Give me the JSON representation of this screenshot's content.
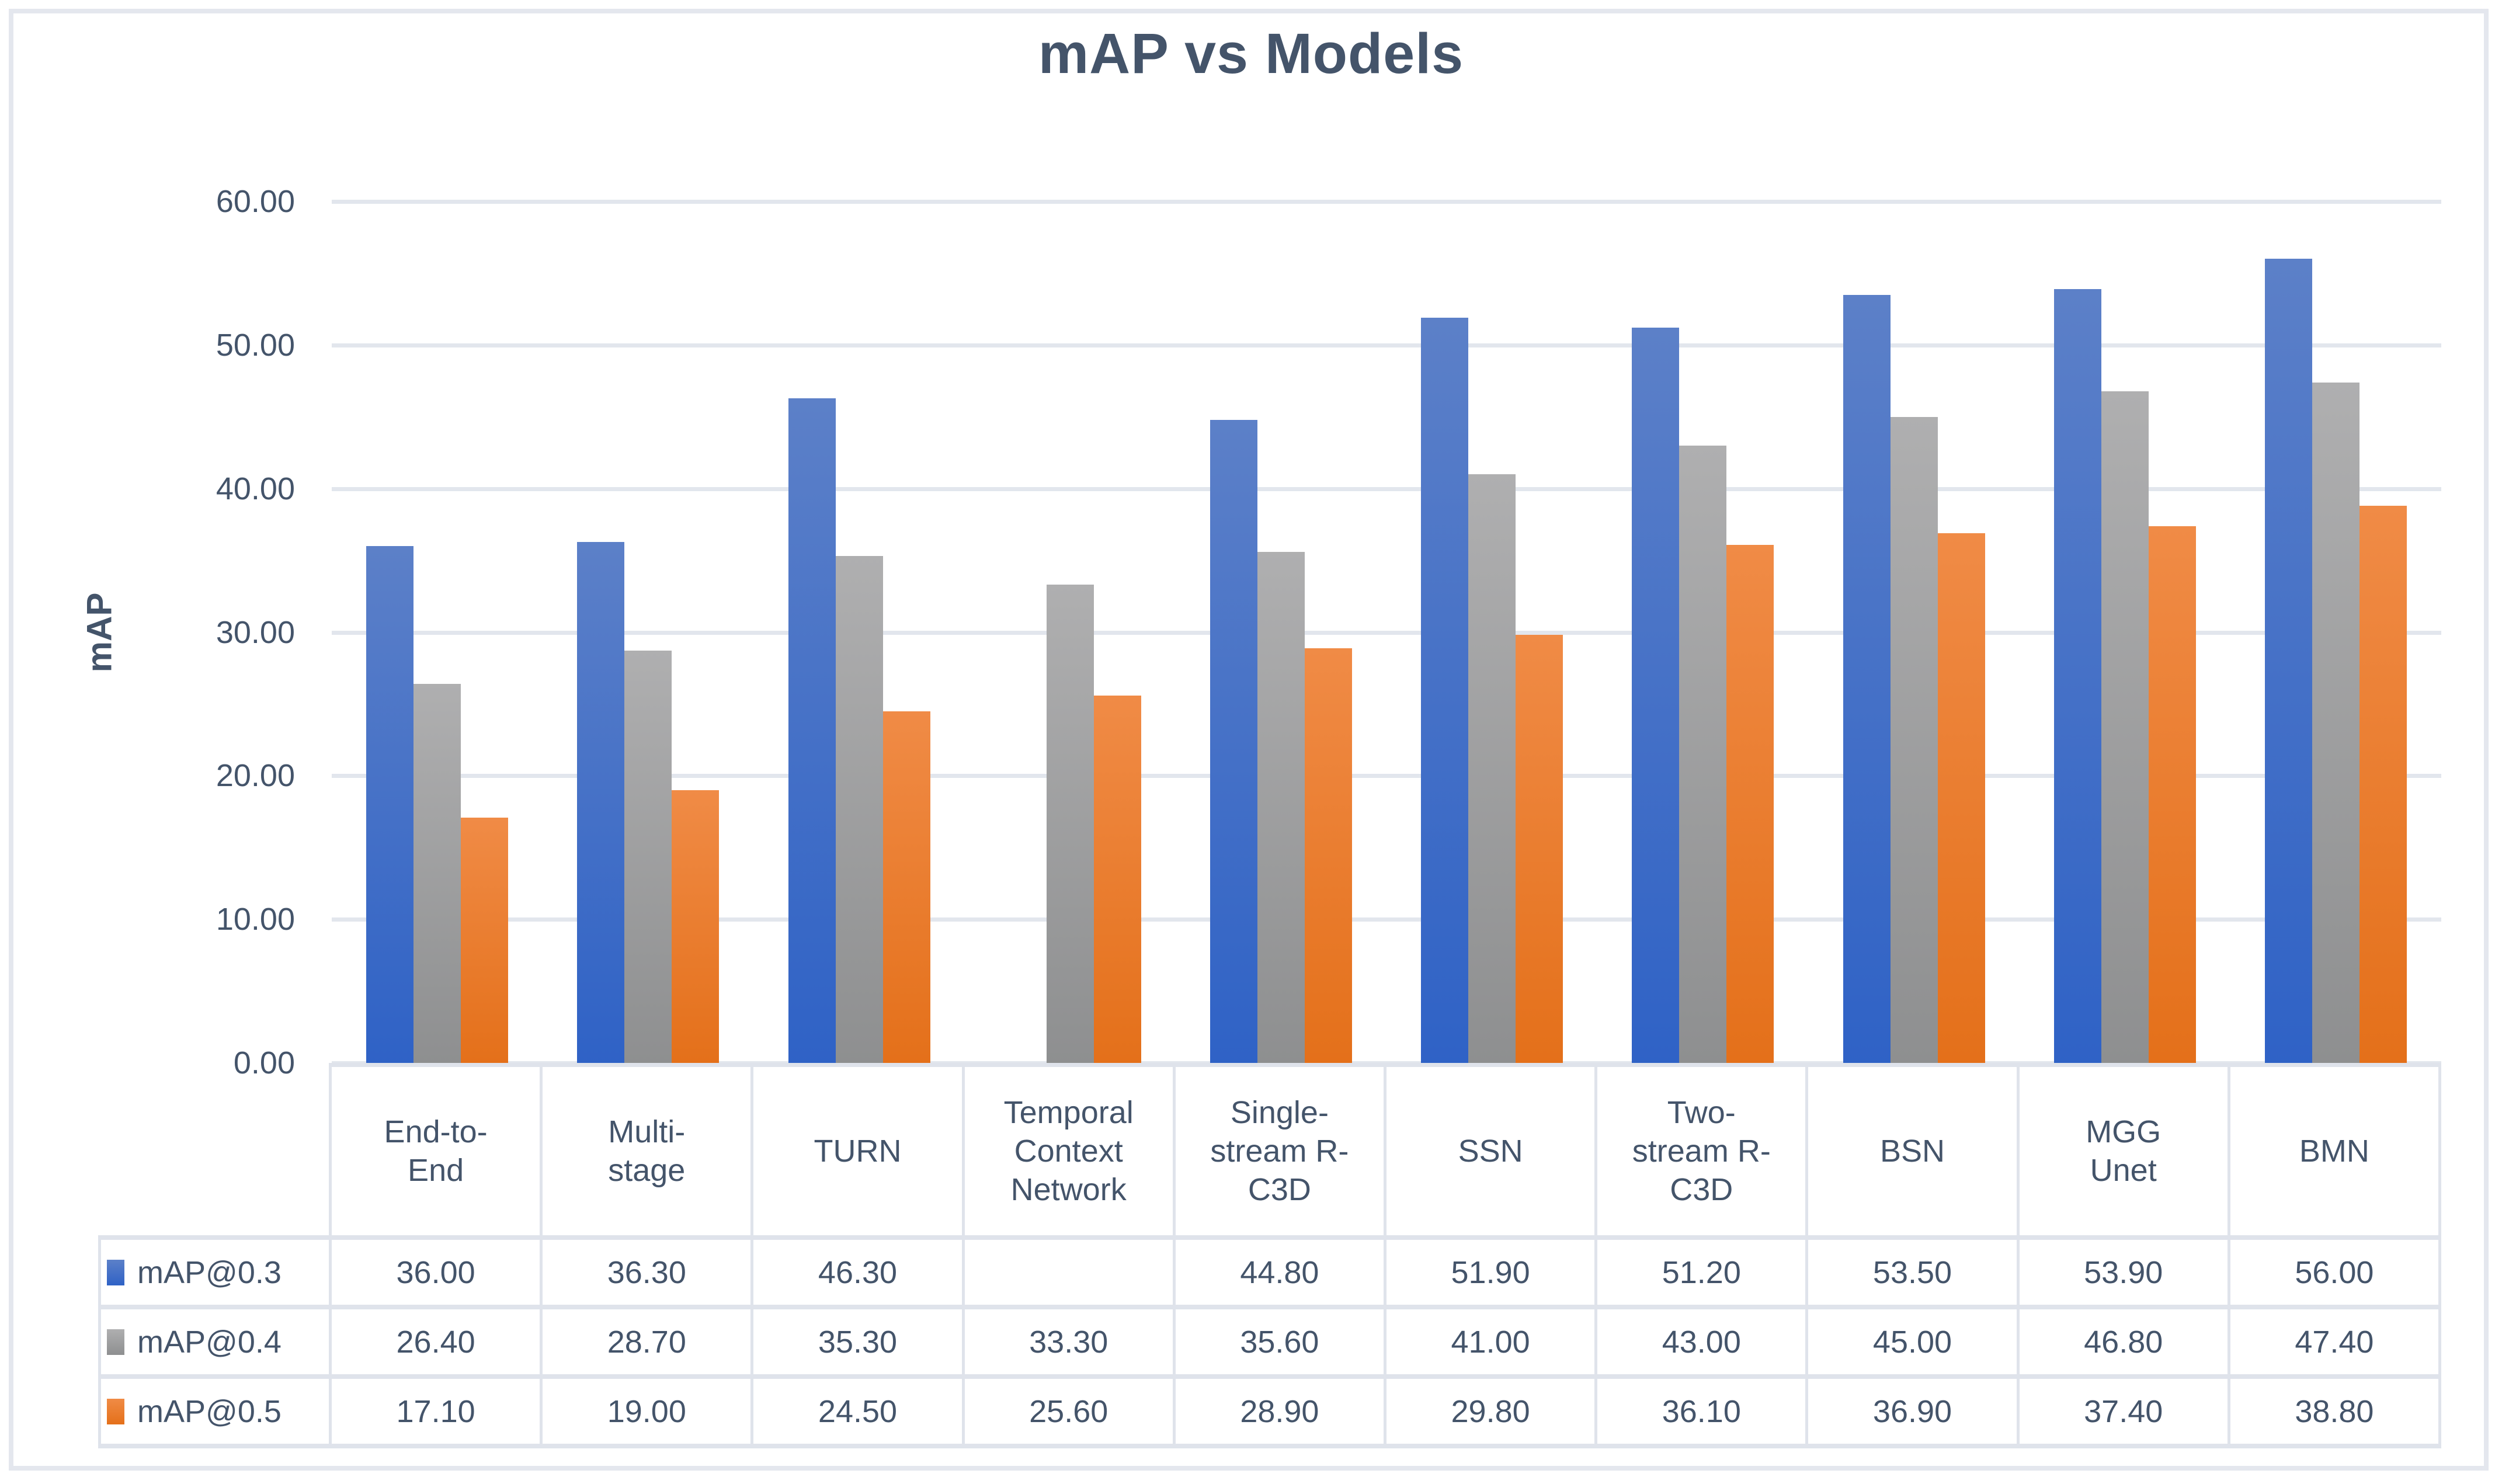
{
  "title": "mAP vs Models",
  "colors": {
    "background": "#FFFFFF",
    "text": "#44546A",
    "frame_border": "#E4E7EE",
    "gridline": "#E2E6ED",
    "table_border": "#DFE3EB"
  },
  "chart_data": {
    "type": "bar",
    "title": "mAP vs Models",
    "xlabel": "",
    "ylabel": "mAP",
    "ylim": [
      0,
      60
    ],
    "ytick_step": 10,
    "y_tick_labels": [
      "60.00",
      "50.00",
      "40.00",
      "30.00",
      "20.00",
      "10.00",
      "0.00"
    ],
    "grid": true,
    "legend_position": "data-table-left",
    "value_format": "two-decimals",
    "categories": [
      "End-to-End",
      "Multi-stage",
      "TURN",
      "Temporal Context Network",
      "Single-stream R-C3D",
      "SSN",
      "Two-stream R-C3D",
      "BSN",
      "MGG Unet",
      "BMN"
    ],
    "category_display": [
      "End-to-\nEnd",
      "Multi-\nstage",
      "TURN",
      "Temporal\nContext\nNetwork",
      "Single-\nstream R-\nC3D",
      "SSN",
      "Two-\nstream R-\nC3D",
      "BSN",
      "MGG\nUnet",
      "BMN"
    ],
    "series": [
      {
        "name": "mAP@0.3",
        "color": "#4472C4",
        "gradient": [
          "#5C80C8",
          "#2F62C6"
        ],
        "values": [
          36.0,
          36.3,
          46.3,
          null,
          44.8,
          51.9,
          51.2,
          53.5,
          53.9,
          56.0
        ]
      },
      {
        "name": "mAP@0.4",
        "color": "#A5A5A5",
        "gradient": [
          "#AFAFB0",
          "#8E8F90"
        ],
        "values": [
          26.4,
          28.7,
          35.3,
          33.3,
          35.6,
          41.0,
          43.0,
          45.0,
          46.8,
          47.4
        ]
      },
      {
        "name": "mAP@0.5",
        "color": "#ED7D31",
        "gradient": [
          "#F08B46",
          "#E4701A"
        ],
        "values": [
          17.1,
          19.0,
          24.5,
          25.6,
          28.9,
          29.8,
          36.1,
          36.9,
          37.4,
          38.8
        ]
      }
    ]
  }
}
